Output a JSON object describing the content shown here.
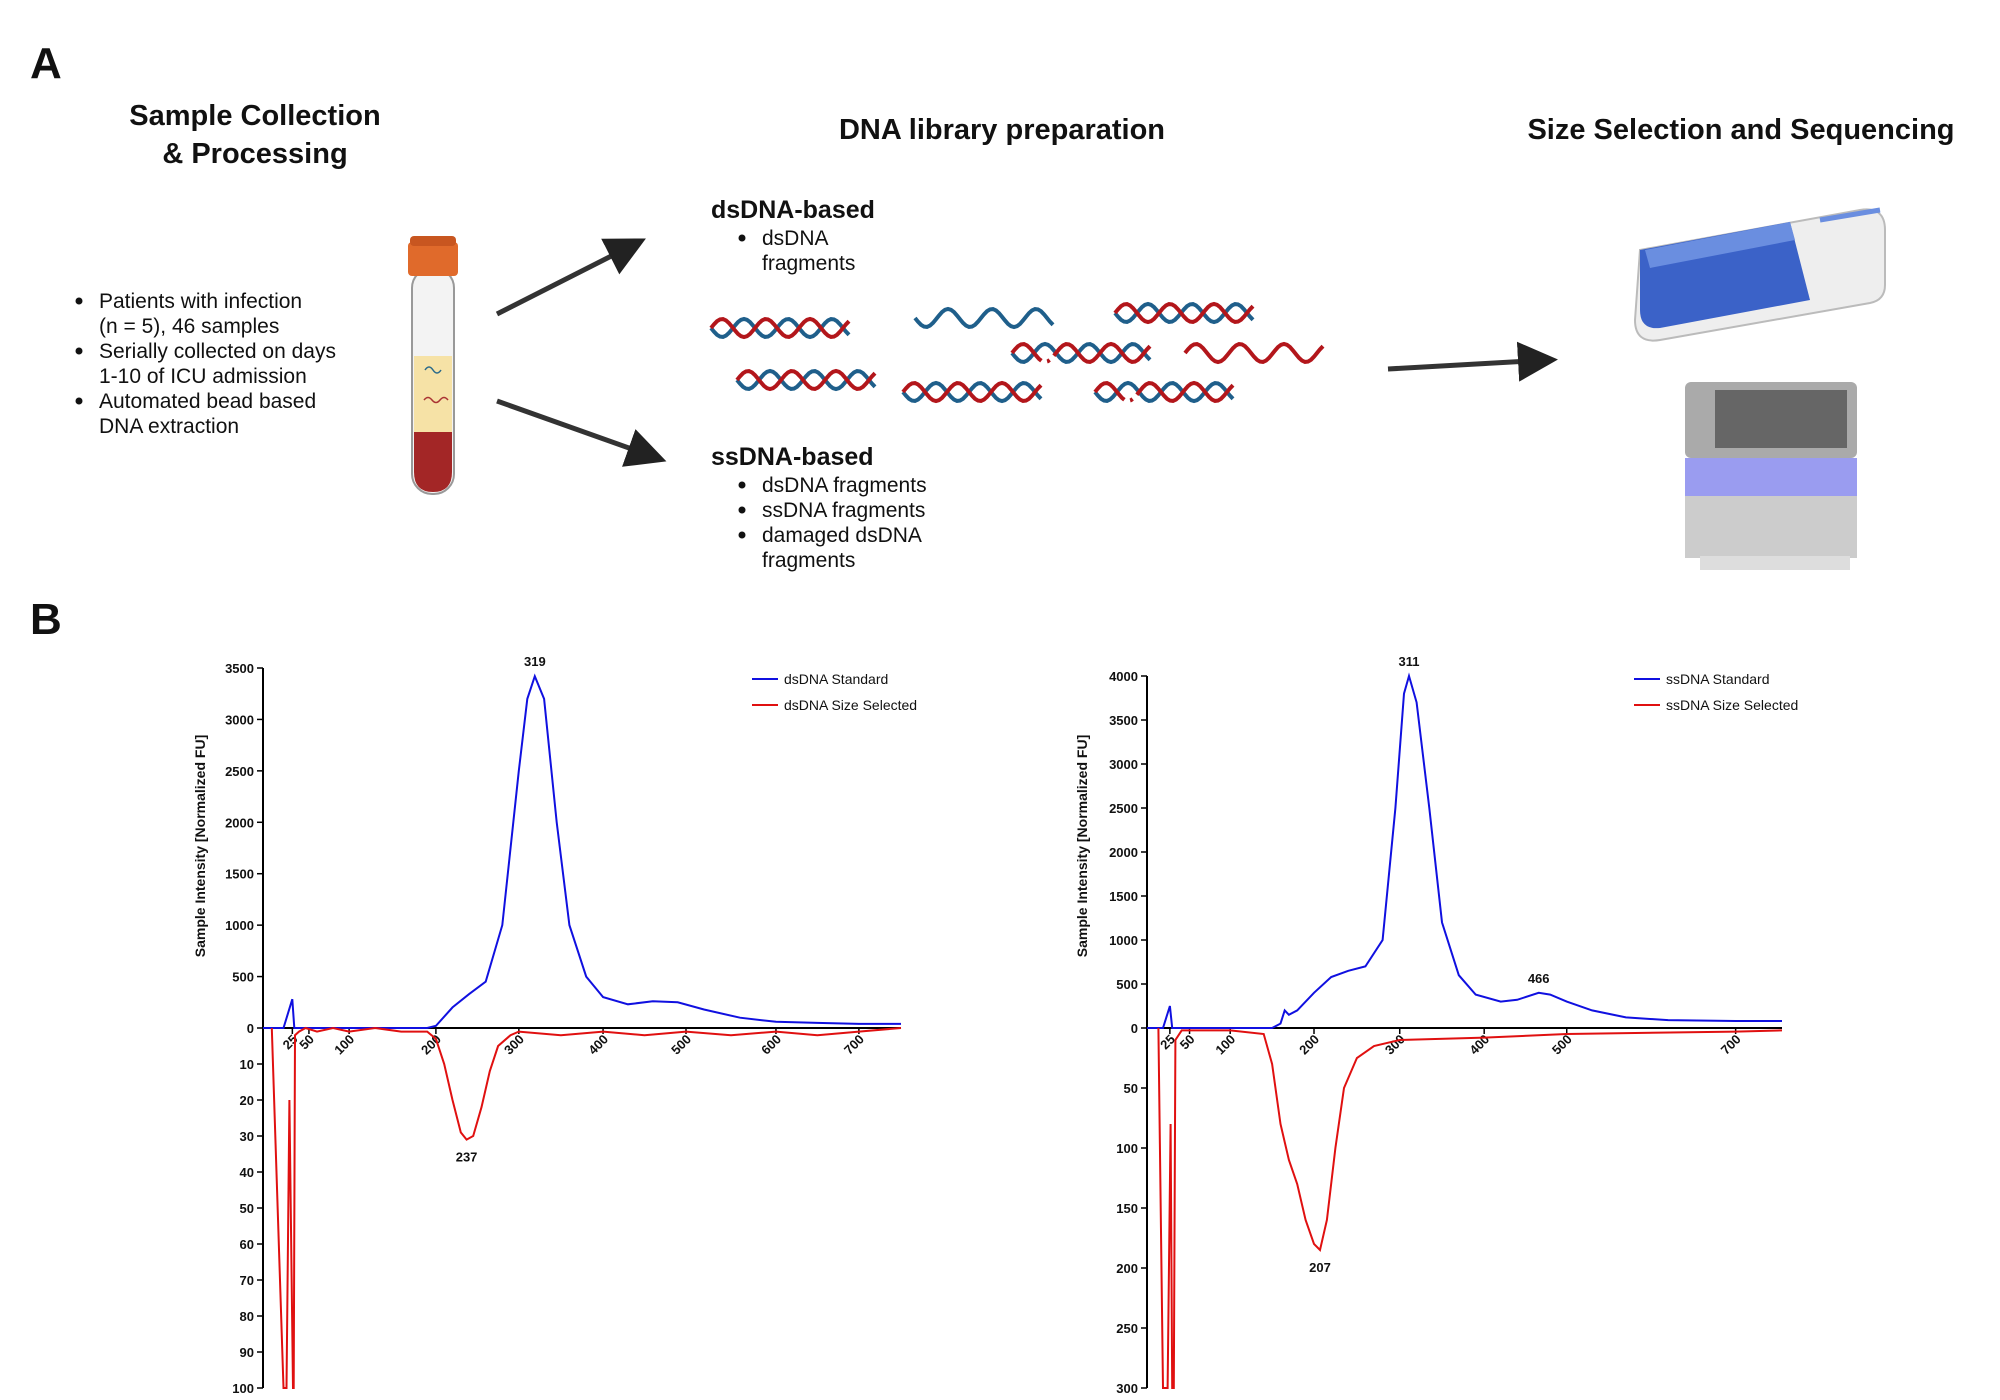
{
  "panel_a": {
    "label": "A",
    "col1": {
      "title": [
        "Sample Collection",
        "& Processing"
      ],
      "bullets": [
        [
          "Patients with infection",
          "(n = 5), 46 samples"
        ],
        [
          "Serially collected on days",
          "1-10 of ICU admission"
        ],
        [
          "Automated bead based",
          "DNA extraction"
        ]
      ]
    },
    "col2": {
      "title": "DNA library preparation",
      "ds": {
        "heading": "dsDNA-based",
        "bullets": [
          [
            "dsDNA",
            "fragments"
          ]
        ]
      },
      "ss": {
        "heading": "ssDNA-based",
        "bullets": [
          [
            "dsDNA fragments"
          ],
          [
            "ssDNA fragments"
          ],
          [
            "damaged dsDNA",
            "fragments"
          ]
        ]
      }
    },
    "col3": {
      "title": "Size Selection and Sequencing"
    }
  },
  "panel_b": {
    "label": "B"
  },
  "chart_data": [
    {
      "type": "line",
      "ylabel": "Sample Intensity [Normalized FU]",
      "xlim": [
        15,
        750
      ],
      "xticks": [
        25,
        50,
        100,
        200,
        300,
        400,
        500,
        600,
        700
      ],
      "ylim": [
        0,
        3500
      ],
      "yticks": [
        0,
        500,
        1000,
        1500,
        2000,
        2500,
        3000,
        3500
      ],
      "y2lim": [
        0,
        100
      ],
      "y2ticks": [
        10,
        20,
        30,
        40,
        50,
        60,
        70,
        80,
        90,
        100
      ],
      "y2_inverted": true,
      "legend": "upper right",
      "series": [
        {
          "name": "dsDNA Standard",
          "color": "#1010e0",
          "axis": "y",
          "x": [
            15,
            22,
            25,
            28,
            50,
            100,
            190,
            200,
            220,
            240,
            260,
            280,
            300,
            310,
            319,
            330,
            345,
            360,
            380,
            400,
            430,
            460,
            490,
            520,
            560,
            600,
            650,
            700,
            750
          ],
          "values": [
            0,
            0,
            280,
            0,
            0,
            0,
            0,
            20,
            200,
            330,
            450,
            1000,
            2500,
            3200,
            3420,
            3200,
            2000,
            1000,
            500,
            300,
            230,
            260,
            250,
            180,
            100,
            60,
            50,
            40,
            40
          ]
        },
        {
          "name": "dsDNA Size Selected",
          "color": "#e01010",
          "axis": "y2",
          "x": [
            18,
            22,
            23,
            24,
            26,
            27,
            29,
            35,
            45,
            60,
            80,
            100,
            130,
            160,
            190,
            200,
            210,
            220,
            230,
            237,
            245,
            255,
            265,
            275,
            290,
            300,
            350,
            400,
            450,
            500,
            550,
            600,
            650,
            700,
            750
          ],
          "values": [
            0,
            100,
            100,
            20,
            100,
            100,
            2,
            1,
            0,
            1,
            0,
            1,
            0,
            1,
            1,
            3,
            10,
            20,
            29,
            31,
            30,
            22,
            12,
            5,
            2,
            1,
            2,
            1,
            2,
            1,
            2,
            1,
            2,
            1,
            0
          ]
        }
      ],
      "annotations": [
        {
          "x": 319,
          "y": 3420,
          "axis": "y"
        },
        {
          "x": 237,
          "y": 31,
          "axis": "y2"
        }
      ]
    },
    {
      "type": "line",
      "ylabel": "Sample Intensity [Normalized FU]",
      "xlim": [
        15,
        750
      ],
      "xticks": [
        25,
        50,
        100,
        200,
        300,
        400,
        500,
        700
      ],
      "ylim": [
        0,
        4000
      ],
      "yticks": [
        0,
        500,
        1000,
        1500,
        2000,
        2500,
        3000,
        3500,
        4000
      ],
      "y2lim": [
        0,
        300
      ],
      "y2ticks": [
        50,
        100,
        150,
        200,
        250,
        300
      ],
      "y2_inverted": true,
      "legend": "upper right",
      "series": [
        {
          "name": "ssDNA Standard",
          "color": "#1010e0",
          "axis": "y",
          "x": [
            15,
            22,
            25,
            28,
            50,
            100,
            150,
            160,
            165,
            170,
            180,
            200,
            220,
            240,
            260,
            280,
            295,
            305,
            311,
            320,
            335,
            350,
            370,
            390,
            420,
            440,
            466,
            480,
            500,
            530,
            570,
            620,
            700,
            750
          ],
          "values": [
            0,
            0,
            250,
            0,
            0,
            0,
            0,
            50,
            200,
            150,
            200,
            400,
            580,
            650,
            700,
            1000,
            2500,
            3800,
            4000,
            3700,
            2500,
            1200,
            600,
            380,
            300,
            320,
            400,
            380,
            300,
            200,
            120,
            90,
            80,
            80
          ]
        },
        {
          "name": "ssDNA Size Selected",
          "color": "#e01010",
          "axis": "y2",
          "x": [
            20,
            22,
            24,
            26,
            28,
            30,
            32,
            40,
            100,
            140,
            150,
            160,
            170,
            180,
            190,
            200,
            207,
            215,
            225,
            235,
            250,
            270,
            300,
            400,
            500,
            700,
            750
          ],
          "values": [
            0,
            300,
            300,
            80,
            300,
            300,
            10,
            2,
            2,
            5,
            30,
            80,
            110,
            130,
            160,
            180,
            185,
            160,
            100,
            50,
            25,
            15,
            10,
            8,
            5,
            3,
            2
          ]
        }
      ],
      "annotations": [
        {
          "x": 311,
          "y": 4000,
          "axis": "y"
        },
        {
          "x": 466,
          "y": 400,
          "axis": "y"
        },
        {
          "x": 207,
          "y": 185,
          "axis": "y2"
        }
      ]
    }
  ]
}
